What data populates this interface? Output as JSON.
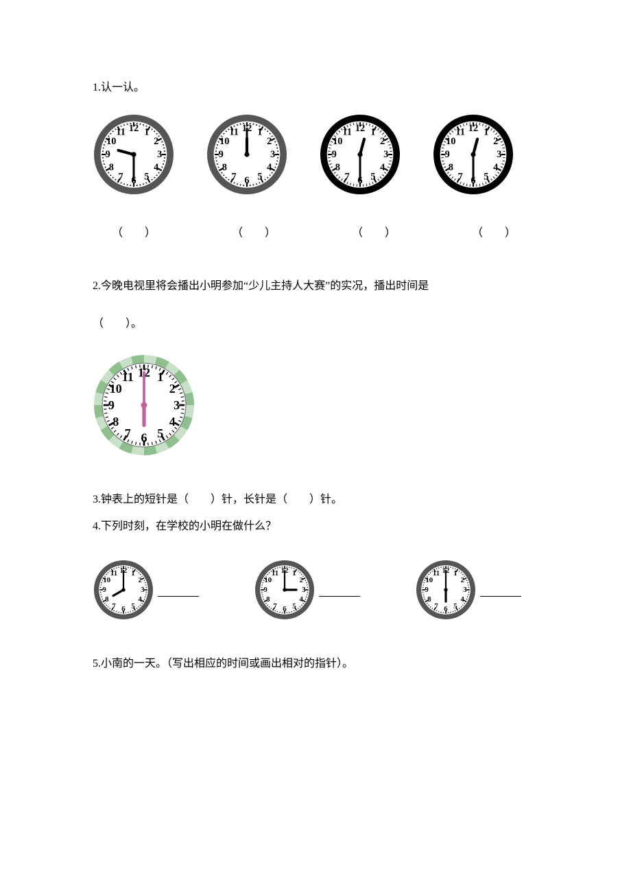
{
  "q1": {
    "label": "1.认一认。",
    "clocks": [
      {
        "hour": 9,
        "minute": 30,
        "size": 120,
        "rim": "#555555",
        "face": "#ffffff",
        "tickStyle": "dots"
      },
      {
        "hour": 12,
        "minute": 0,
        "size": 120,
        "rim": "#555555",
        "face": "#ffffff",
        "tickStyle": "dots"
      },
      {
        "hour": 12,
        "minute": 30,
        "size": 120,
        "rim": "#000000",
        "face": "#ffffff",
        "tickStyle": "strokes"
      },
      {
        "hour": 12,
        "minute": 30,
        "size": 120,
        "rim": "#000000",
        "face": "#ffffff",
        "tickStyle": "strokes"
      }
    ],
    "paren": "（　　）"
  },
  "q2": {
    "label_a": "2.今晚电视里将会播出小明参加“少儿主持人大赛”的实况，播出时间是",
    "label_b": "（　　）。",
    "clock": {
      "hour": 6,
      "minute": 0,
      "size": 150,
      "rim": "#9cc99c",
      "rimPattern": true,
      "face": "#ffffff",
      "handColor": "#c060a0",
      "tickStyle": "strokes"
    }
  },
  "q3": {
    "label": "3.钟表上的短针是（　　）针，长针是（　　）针。"
  },
  "q4": {
    "label": "4.下列时刻，在学校的小明在做什么？",
    "clocks": [
      {
        "hour": 8,
        "minute": 0,
        "size": 90,
        "rim": "#555555",
        "face": "#ffffff",
        "tickStyle": "dots"
      },
      {
        "hour": 3,
        "minute": 0,
        "size": 90,
        "rim": "#555555",
        "face": "#ffffff",
        "tickStyle": "dots"
      },
      {
        "hour": 6,
        "minute": 0,
        "size": 90,
        "rim": "#555555",
        "face": "#ffffff",
        "tickStyle": "dots"
      }
    ]
  },
  "q5": {
    "label": "5.小南的一天。（写出相应的时间或画出相对的指针）。"
  },
  "style": {
    "numberFont": "Times New Roman, serif",
    "numberWeight": "bold",
    "numberColor": "#000000"
  }
}
